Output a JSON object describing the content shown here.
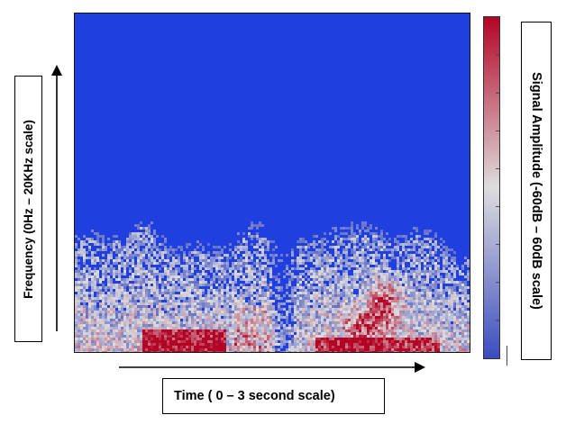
{
  "chart_data": {
    "type": "heatmap",
    "title": "",
    "xlabel": "Time ( 0 – 3 second scale)",
    "ylabel": "Frequency (0Hz – 20KHz scale)",
    "colorbar_label": "Signal Amplitude (-60dB – 60dB scale)",
    "x_range": [
      0,
      3
    ],
    "x_unit": "s",
    "y_range": [
      0,
      20000
    ],
    "y_unit": "Hz",
    "value_range": [
      -60,
      60
    ],
    "value_unit": "dB",
    "colormap": [
      "#3b4cc0",
      "#dddddd",
      "#b40426"
    ],
    "background_color": "#1f3fe0",
    "grid": false,
    "ticks_labeled": false
  }
}
